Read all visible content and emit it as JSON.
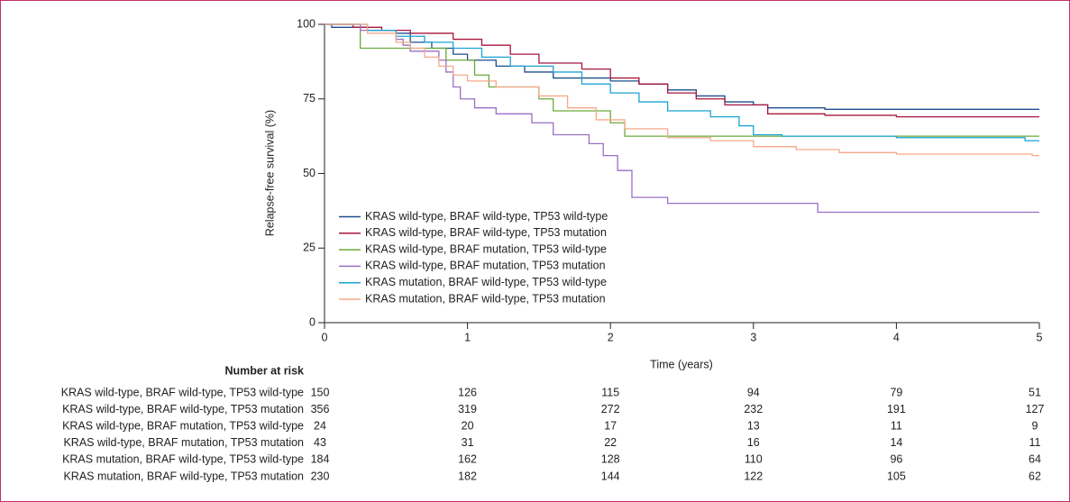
{
  "chart_data": {
    "type": "line",
    "step": true,
    "ylabel": "Relapse-free survival (%)",
    "xlabel": "Time (years)",
    "xlim": [
      0,
      5
    ],
    "xticks": [
      0,
      1,
      2,
      3,
      4,
      5
    ],
    "ylim": [
      0,
      100
    ],
    "yticks": [
      0,
      25,
      50,
      75,
      100
    ],
    "grid": false,
    "legend": "lower left",
    "series": [
      {
        "name": "KRAS wild-type, BRAF wild-type, TP53 wild-type",
        "color": "#1f4e8c",
        "x": [
          0,
          0.05,
          0.05,
          0.3,
          0.3,
          0.5,
          0.5,
          0.6,
          0.6,
          0.75,
          0.75,
          0.9,
          0.9,
          1.0,
          1.0,
          1.2,
          1.2,
          1.4,
          1.4,
          1.6,
          1.6,
          2.0,
          2.0,
          2.2,
          2.2,
          2.4,
          2.4,
          2.6,
          2.6,
          2.8,
          2.8,
          3.0,
          3.0,
          3.1,
          3.1,
          3.5,
          3.5,
          5
        ],
        "values": [
          100,
          100,
          99,
          99,
          98,
          98,
          97,
          97,
          94,
          94,
          92,
          92,
          90,
          90,
          88,
          88,
          86,
          86,
          84,
          84,
          82,
          82,
          81,
          81,
          80,
          80,
          78,
          78,
          76,
          76,
          74,
          74,
          73,
          73,
          72,
          72,
          71.5,
          71.5
        ]
      },
      {
        "name": "KRAS wild-type, BRAF wild-type, TP53 mutation",
        "color": "#a6173d",
        "x": [
          0,
          0.2,
          0.2,
          0.4,
          0.4,
          0.6,
          0.6,
          0.9,
          0.9,
          1.1,
          1.1,
          1.3,
          1.3,
          1.5,
          1.5,
          1.8,
          1.8,
          2.0,
          2.0,
          2.2,
          2.2,
          2.4,
          2.4,
          2.6,
          2.6,
          2.8,
          2.8,
          3.1,
          3.1,
          3.5,
          3.5,
          4.0,
          4.0,
          5
        ],
        "values": [
          100,
          100,
          99,
          99,
          98,
          98,
          97,
          97,
          95,
          95,
          93,
          93,
          90,
          90,
          87,
          87,
          85,
          85,
          82,
          82,
          80,
          80,
          77,
          77,
          75,
          75,
          73,
          73,
          70,
          70,
          69.5,
          69.5,
          69,
          69
        ]
      },
      {
        "name": "KRAS wild-type, BRAF mutation, TP53 wild-type",
        "color": "#6aaa3a",
        "x": [
          0,
          0.25,
          0.25,
          0.85,
          0.85,
          1.05,
          1.05,
          1.15,
          1.15,
          1.5,
          1.5,
          1.6,
          1.6,
          2.0,
          2.0,
          2.1,
          2.1,
          5
        ],
        "values": [
          100,
          100,
          92,
          92,
          88,
          88,
          83,
          83,
          79,
          79,
          75,
          75,
          71,
          71,
          67,
          67,
          62.5,
          62.5
        ]
      },
      {
        "name": "KRAS wild-type, BRAF mutation, TP53 mutation",
        "color": "#9b6fc3",
        "x": [
          0,
          0.25,
          0.25,
          0.5,
          0.5,
          0.55,
          0.55,
          0.6,
          0.6,
          0.8,
          0.8,
          0.85,
          0.85,
          0.9,
          0.9,
          0.95,
          0.95,
          1.05,
          1.05,
          1.2,
          1.2,
          1.45,
          1.45,
          1.6,
          1.6,
          1.85,
          1.85,
          1.95,
          1.95,
          2.05,
          2.05,
          2.15,
          2.15,
          2.4,
          2.4,
          3.45,
          3.45,
          5
        ],
        "values": [
          100,
          100,
          98,
          98,
          95,
          95,
          93,
          93,
          91,
          91,
          88,
          88,
          84,
          84,
          79,
          79,
          75,
          75,
          72,
          72,
          70,
          70,
          67,
          67,
          63,
          63,
          60,
          60,
          56,
          56,
          51,
          51,
          42,
          42,
          40,
          40,
          37,
          37
        ]
      },
      {
        "name": "KRAS mutation, BRAF wild-type, TP53 wild-type",
        "color": "#1aa3d4",
        "x": [
          0,
          0.3,
          0.3,
          0.5,
          0.5,
          0.7,
          0.7,
          0.9,
          0.9,
          1.1,
          1.1,
          1.3,
          1.3,
          1.6,
          1.6,
          1.8,
          1.8,
          2.0,
          2.0,
          2.2,
          2.2,
          2.4,
          2.4,
          2.7,
          2.7,
          2.9,
          2.9,
          3.0,
          3.0,
          3.2,
          3.2,
          4.0,
          4.0,
          4.9,
          4.9,
          5
        ],
        "values": [
          100,
          100,
          98,
          98,
          96,
          96,
          94,
          94,
          92,
          92,
          89,
          89,
          86,
          86,
          84,
          84,
          80,
          80,
          77,
          77,
          74,
          74,
          71,
          71,
          69,
          69,
          66,
          66,
          63,
          63,
          62.5,
          62.5,
          62,
          62,
          61,
          61
        ]
      },
      {
        "name": "KRAS mutation, BRAF wild-type, TP53 mutation",
        "color": "#f5a98a",
        "x": [
          0,
          0.3,
          0.3,
          0.5,
          0.5,
          0.6,
          0.6,
          0.7,
          0.7,
          0.8,
          0.8,
          0.9,
          0.9,
          1.0,
          1.0,
          1.2,
          1.2,
          1.5,
          1.5,
          1.7,
          1.7,
          1.9,
          1.9,
          2.1,
          2.1,
          2.4,
          2.4,
          2.7,
          2.7,
          3.0,
          3.0,
          3.3,
          3.3,
          3.6,
          3.6,
          4.0,
          4.0,
          4.95,
          4.95,
          5
        ],
        "values": [
          100,
          100,
          97,
          97,
          94,
          94,
          92,
          92,
          89,
          89,
          86,
          86,
          83,
          83,
          81,
          81,
          79,
          79,
          76,
          76,
          72,
          72,
          68,
          68,
          65,
          65,
          62,
          62,
          61,
          61,
          59,
          59,
          58,
          58,
          57,
          57,
          56.5,
          56.5,
          56,
          56
        ]
      }
    ],
    "risk_table": {
      "title": "Number at risk",
      "values": [
        [
          150,
          126,
          115,
          94,
          79,
          51
        ],
        [
          356,
          319,
          272,
          232,
          191,
          127
        ],
        [
          24,
          20,
          17,
          13,
          11,
          9
        ],
        [
          43,
          31,
          22,
          16,
          14,
          11
        ],
        [
          184,
          162,
          128,
          110,
          96,
          64
        ],
        [
          230,
          182,
          144,
          122,
          105,
          62
        ]
      ]
    }
  }
}
